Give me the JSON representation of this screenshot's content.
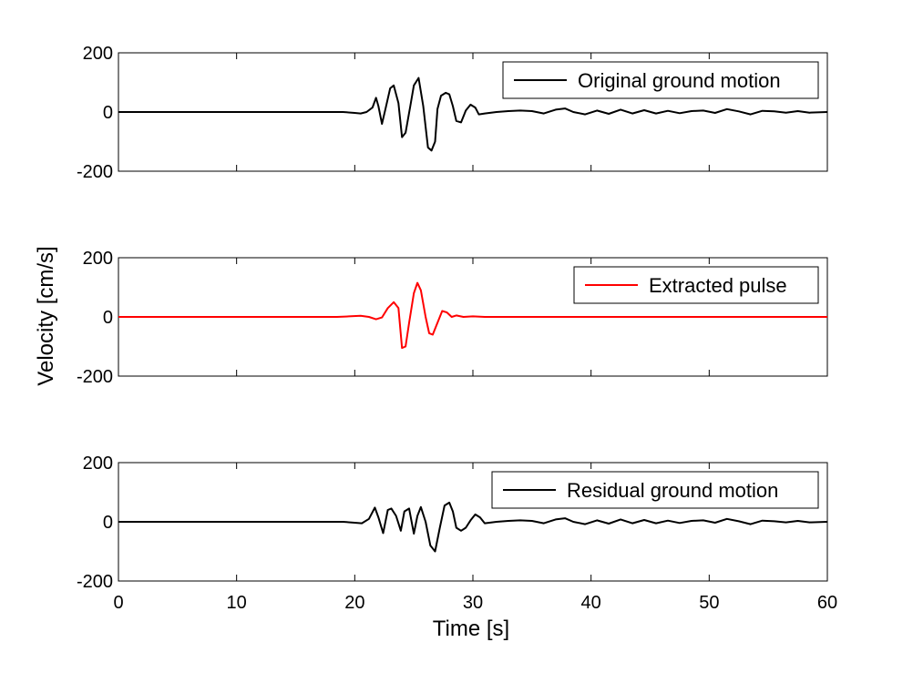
{
  "chart_data": [
    {
      "type": "line",
      "xlabel": "",
      "ylabel": "",
      "xlim": [
        0,
        60
      ],
      "ylim": [
        -200,
        200
      ],
      "xticks": [
        0,
        10,
        20,
        30,
        40,
        50,
        60
      ],
      "yticks": [
        -200,
        0,
        200
      ],
      "grid": false,
      "legend_position": "top-right",
      "series": [
        {
          "name": "Original ground motion",
          "color": "#000000",
          "x": [
            0,
            5,
            10,
            15,
            18,
            19,
            20,
            20.5,
            21,
            21.5,
            21.8,
            22.0,
            22.3,
            22.6,
            23.0,
            23.3,
            23.7,
            24.0,
            24.3,
            24.7,
            25.0,
            25.4,
            25.8,
            26.2,
            26.5,
            26.8,
            27.0,
            27.3,
            27.7,
            28.0,
            28.3,
            28.6,
            29.0,
            29.4,
            29.8,
            30.2,
            30.5,
            31.0,
            32,
            33,
            34,
            35,
            36,
            37,
            37.8,
            38.5,
            39.5,
            40.5,
            41.5,
            42.5,
            43.5,
            44.5,
            45.5,
            46.5,
            47.5,
            48.5,
            49.5,
            50.5,
            51.5,
            52.5,
            53.5,
            54.5,
            55.5,
            56.5,
            57.5,
            58.5,
            60
          ],
          "y": [
            0,
            0,
            0,
            0,
            0,
            0,
            -3,
            -5,
            0,
            15,
            48,
            20,
            -40,
            10,
            80,
            90,
            30,
            -85,
            -70,
            20,
            90,
            115,
            20,
            -120,
            -130,
            -100,
            10,
            55,
            65,
            60,
            20,
            -30,
            -35,
            5,
            25,
            15,
            -8,
            -5,
            0,
            3,
            5,
            3,
            -5,
            8,
            12,
            0,
            -8,
            5,
            -6,
            8,
            -5,
            6,
            -5,
            4,
            -4,
            3,
            5,
            -3,
            10,
            2,
            -8,
            4,
            2,
            -2,
            3,
            -2,
            0
          ]
        }
      ]
    },
    {
      "type": "line",
      "xlabel": "",
      "ylabel": "Velocity [cm/s]",
      "xlim": [
        0,
        60
      ],
      "ylim": [
        -200,
        200
      ],
      "xticks": [
        0,
        10,
        20,
        30,
        40,
        50,
        60
      ],
      "yticks": [
        -200,
        0,
        200
      ],
      "grid": false,
      "legend_position": "top-right",
      "series": [
        {
          "name": "Extracted pulse",
          "color": "#ff0000",
          "x": [
            0,
            10,
            18.5,
            19.5,
            20.5,
            21.2,
            21.8,
            22.3,
            22.8,
            23.3,
            23.7,
            24.0,
            24.3,
            24.6,
            25.0,
            25.3,
            25.6,
            26.0,
            26.3,
            26.6,
            27.0,
            27.4,
            27.8,
            28.2,
            28.6,
            29.2,
            30,
            31,
            60
          ],
          "y": [
            0,
            0,
            0,
            2,
            4,
            0,
            -8,
            -2,
            30,
            50,
            30,
            -105,
            -100,
            -20,
            80,
            115,
            90,
            0,
            -55,
            -60,
            -20,
            20,
            15,
            0,
            5,
            0,
            2,
            0,
            0
          ]
        }
      ]
    },
    {
      "type": "line",
      "xlabel": "Time [s]",
      "ylabel": "",
      "xlim": [
        0,
        60
      ],
      "ylim": [
        -200,
        200
      ],
      "xticks": [
        0,
        10,
        20,
        30,
        40,
        50,
        60
      ],
      "yticks": [
        -200,
        0,
        200
      ],
      "grid": false,
      "legend_position": "top-right",
      "series": [
        {
          "name": "Residual ground motion",
          "color": "#000000",
          "x": [
            0,
            5,
            10,
            15,
            18,
            19,
            20,
            20.6,
            21.2,
            21.7,
            22.0,
            22.4,
            22.8,
            23.1,
            23.5,
            23.9,
            24.2,
            24.6,
            25.0,
            25.3,
            25.6,
            26.0,
            26.4,
            26.8,
            27.2,
            27.6,
            28.0,
            28.3,
            28.6,
            29.0,
            29.4,
            29.8,
            30.2,
            30.6,
            31.0,
            32,
            33,
            34,
            35,
            36,
            37,
            37.8,
            38.5,
            39.5,
            40.5,
            41.5,
            42.5,
            43.5,
            44.5,
            45.5,
            46.5,
            47.5,
            48.5,
            49.5,
            50.5,
            51.5,
            52.5,
            53.5,
            54.5,
            55.5,
            56.5,
            57.5,
            58.5,
            60
          ],
          "y": [
            0,
            0,
            0,
            0,
            0,
            0,
            -3,
            -5,
            10,
            48,
            15,
            -38,
            40,
            45,
            20,
            -30,
            35,
            45,
            -40,
            20,
            50,
            0,
            -80,
            -100,
            -20,
            55,
            65,
            35,
            -20,
            -30,
            -20,
            5,
            25,
            15,
            -5,
            0,
            3,
            5,
            3,
            -5,
            8,
            12,
            0,
            -8,
            5,
            -6,
            8,
            -5,
            6,
            -5,
            4,
            -4,
            3,
            5,
            -3,
            10,
            2,
            -8,
            4,
            2,
            -2,
            3,
            -2,
            0
          ]
        }
      ]
    }
  ]
}
